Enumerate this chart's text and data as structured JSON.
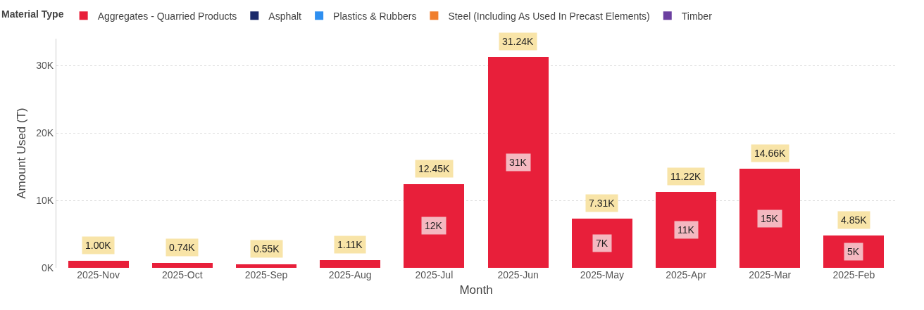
{
  "chart_data": {
    "type": "bar",
    "stacked": true,
    "xlabel": "Month",
    "ylabel": "Amount Used (T)",
    "legend_title": "Material Type",
    "legend": "top left",
    "grid": "y",
    "categories": [
      "2025-Nov",
      "2025-Oct",
      "2025-Sep",
      "2025-Aug",
      "2025-Jul",
      "2025-Jun",
      "2025-May",
      "2025-Apr",
      "2025-Mar",
      "2025-Feb"
    ],
    "series": [
      {
        "name": "Aggregates - Quarried Products",
        "color": "#e81f3a",
        "values": [
          1000,
          740,
          550,
          1110,
          12450,
          31240,
          7310,
          11220,
          14660,
          4850
        ],
        "value_labels": [
          null,
          null,
          null,
          null,
          "12K",
          "31K",
          "7K",
          "11K",
          "15K",
          "5K"
        ]
      },
      {
        "name": "Asphalt",
        "color": "#1b2a6b",
        "values": [
          null,
          null,
          null,
          null,
          null,
          null,
          null,
          null,
          null,
          null
        ]
      },
      {
        "name": "Plastics & Rubbers",
        "color": "#2e8ff0",
        "values": [
          null,
          null,
          null,
          null,
          null,
          null,
          null,
          null,
          null,
          null
        ]
      },
      {
        "name": "Steel (Including As Used In Precast Elements)",
        "color": "#f07f2e",
        "values": [
          null,
          null,
          null,
          null,
          null,
          null,
          null,
          null,
          null,
          null
        ]
      },
      {
        "name": "Timber",
        "color": "#6b3fa0",
        "values": [
          null,
          null,
          null,
          null,
          null,
          null,
          null,
          null,
          null,
          null
        ]
      }
    ],
    "totals": [
      "1.00K",
      "0.74K",
      "0.55K",
      "1.11K",
      "12.45K",
      "31.24K",
      "7.31K",
      "11.22K",
      "14.66K",
      "4.85K"
    ],
    "ylim": [
      0,
      34000
    ],
    "yticks": [
      {
        "value": 0,
        "label": "0K"
      },
      {
        "value": 10000,
        "label": "10K"
      },
      {
        "value": 20000,
        "label": "20K"
      },
      {
        "value": 30000,
        "label": "30K"
      }
    ]
  }
}
